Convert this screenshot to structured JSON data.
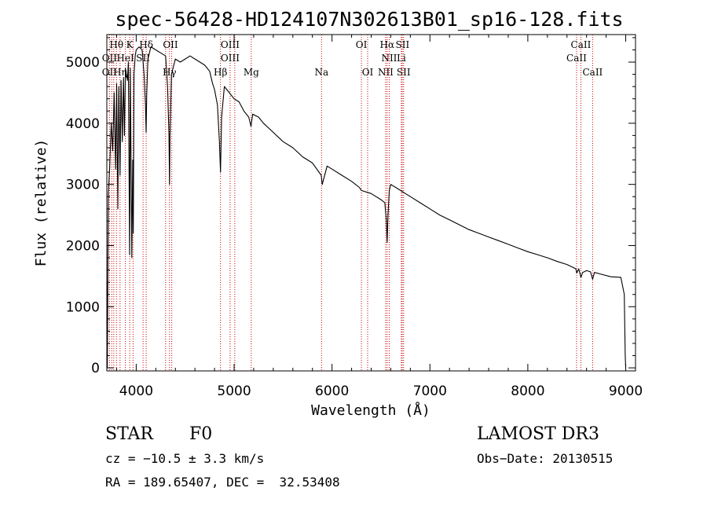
{
  "chart_data": {
    "type": "line",
    "title": "spec-56428-HD124107N302613B01_sp16-128.fits",
    "xlabel": "Wavelength (Å)",
    "ylabel": "Flux (relative)",
    "xlim": [
      3700,
      9100
    ],
    "ylim": [
      -50,
      5450
    ],
    "xticks": [
      4000,
      5000,
      6000,
      7000,
      8000,
      9000
    ],
    "yticks": [
      0,
      1000,
      2000,
      3000,
      4000,
      5000
    ],
    "series": [
      {
        "name": "spectrum",
        "x": [
          3700,
          3705,
          3715,
          3730,
          3745,
          3760,
          3775,
          3790,
          3800,
          3812,
          3822,
          3835,
          3845,
          3858,
          3870,
          3880,
          3890,
          3900,
          3910,
          3920,
          3933,
          3940,
          3955,
          3965,
          3970,
          3978,
          3990,
          4000,
          4030,
          4060,
          4080,
          4095,
          4101,
          4108,
          4120,
          4150,
          4200,
          4250,
          4300,
          4320,
          4335,
          4340,
          4345,
          4360,
          4400,
          4450,
          4500,
          4550,
          4600,
          4650,
          4700,
          4750,
          4780,
          4800,
          4830,
          4850,
          4861,
          4872,
          4900,
          4950,
          5000,
          5050,
          5100,
          5150,
          5172,
          5190,
          5250,
          5300,
          5400,
          5500,
          5600,
          5700,
          5800,
          5890,
          5900,
          5950,
          6000,
          6100,
          6200,
          6280,
          6300,
          6400,
          6450,
          6500,
          6540,
          6555,
          6563,
          6572,
          6585,
          6600,
          6650,
          6700,
          6750,
          6800,
          6900,
          7000,
          7100,
          7200,
          7300,
          7400,
          7500,
          7600,
          7700,
          7800,
          7900,
          8000,
          8100,
          8200,
          8300,
          8400,
          8490,
          8500,
          8520,
          8542,
          8560,
          8600,
          8640,
          8662,
          8680,
          8750,
          8850,
          8950,
          8985,
          8995,
          9000
        ],
        "values": [
          1400,
          0,
          2850,
          3300,
          4000,
          3550,
          4500,
          3250,
          4650,
          2600,
          4600,
          3150,
          4700,
          3700,
          4750,
          3800,
          4900,
          4800,
          4700,
          5000,
          1850,
          4900,
          1800,
          3400,
          2200,
          4800,
          5100,
          5200,
          5250,
          5200,
          4800,
          4300,
          3850,
          4500,
          5050,
          5250,
          5200,
          5150,
          5100,
          4600,
          3800,
          3000,
          3800,
          4800,
          5050,
          5000,
          5050,
          5100,
          5050,
          5000,
          4950,
          4850,
          4650,
          4550,
          4300,
          3700,
          3200,
          4100,
          4600,
          4500,
          4400,
          4350,
          4200,
          4100,
          3950,
          4150,
          4100,
          4000,
          3850,
          3700,
          3600,
          3450,
          3350,
          3150,
          3000,
          3300,
          3250,
          3150,
          3050,
          2950,
          2900,
          2850,
          2800,
          2750,
          2700,
          2400,
          2050,
          2500,
          2900,
          3000,
          2950,
          2900,
          2850,
          2800,
          2700,
          2600,
          2500,
          2420,
          2340,
          2260,
          2200,
          2140,
          2080,
          2020,
          1960,
          1900,
          1850,
          1800,
          1740,
          1690,
          1620,
          1550,
          1620,
          1480,
          1560,
          1590,
          1570,
          1450,
          1560,
          1530,
          1490,
          1480,
          1200,
          200,
          0
        ]
      }
    ],
    "annotations": [
      {
        "label": "Hθ",
        "x": 3798,
        "row": 1
      },
      {
        "label": "K",
        "x": 3934,
        "row": 1
      },
      {
        "label": "Hδ",
        "x": 4102,
        "row": 1
      },
      {
        "label": "OII",
        "x": 4350,
        "row": 1
      },
      {
        "label": "OIII",
        "x": 4959,
        "row": 1
      },
      {
        "label": "OI",
        "x": 6300,
        "row": 1
      },
      {
        "label": "Hα",
        "x": 6563,
        "row": 1
      },
      {
        "label": "SII",
        "x": 6720,
        "row": 1
      },
      {
        "label": "CaII",
        "x": 8542,
        "row": 1
      },
      {
        "label": "OII",
        "x": 3727,
        "row": 2
      },
      {
        "label": "HeI",
        "x": 3889,
        "row": 2
      },
      {
        "label": "SII",
        "x": 4070,
        "row": 2
      },
      {
        "label": "OIII",
        "x": 4959,
        "row": 2
      },
      {
        "label": "NII",
        "x": 6584,
        "row": 2
      },
      {
        "label": "Li",
        "x": 6708,
        "row": 2
      },
      {
        "label": "CaII",
        "x": 8498,
        "row": 2
      },
      {
        "label": "OII",
        "x": 3727,
        "row": 3
      },
      {
        "label": "Hη",
        "x": 3835,
        "row": 3
      },
      {
        "label": "Hγ",
        "x": 4340,
        "row": 3
      },
      {
        "label": "Hβ",
        "x": 4861,
        "row": 3
      },
      {
        "label": "Mg",
        "x": 5175,
        "row": 3
      },
      {
        "label": "Na",
        "x": 5893,
        "row": 3
      },
      {
        "label": "OI",
        "x": 6364,
        "row": 3
      },
      {
        "label": "NII",
        "x": 6548,
        "row": 3
      },
      {
        "label": "SII",
        "x": 6731,
        "row": 3
      },
      {
        "label": "CaII",
        "x": 8662,
        "row": 3
      }
    ],
    "marker_lines": [
      3727,
      3750,
      3771,
      3798,
      3835,
      3889,
      3934,
      3968,
      4070,
      4102,
      4300,
      4340,
      4363,
      4861,
      4959,
      5007,
      5175,
      5893,
      6300,
      6364,
      6548,
      6563,
      6584,
      6708,
      6717,
      6731,
      8498,
      8542,
      8662
    ],
    "grid": false
  },
  "info": {
    "object_type": "STAR",
    "subclass": "F0",
    "survey": "LAMOST DR3",
    "redshift": "cz = −10.5 ± 3.3 km/s",
    "obs_date": "Obs−Date: 20130515",
    "coords": "RA = 189.65407, DEC =  32.53408"
  },
  "colors": {
    "spectrum": "#000000",
    "markers": "#cc0000",
    "axes": "#000000"
  }
}
